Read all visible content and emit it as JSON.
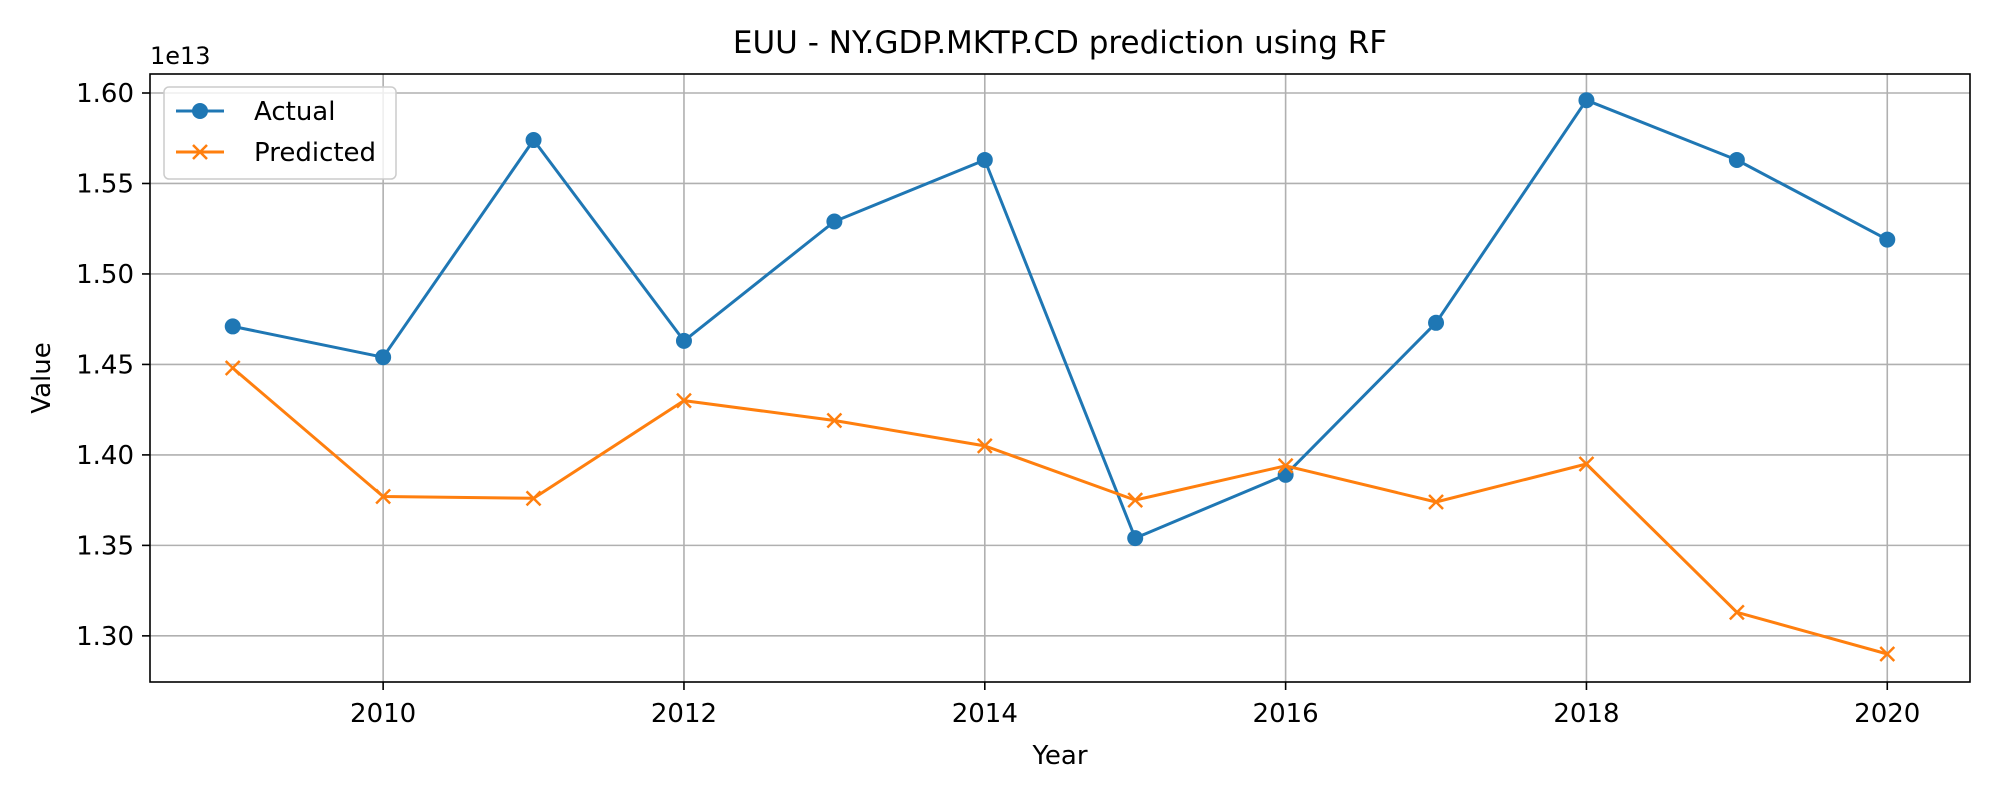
{
  "chart_data": {
    "type": "line",
    "title": "EUU - NY.GDP.MKTP.CD prediction using RF",
    "xlabel": "Year",
    "ylabel": "Value",
    "y_offset_label": "1e13",
    "x": [
      2009,
      2010,
      2011,
      2012,
      2013,
      2014,
      2015,
      2016,
      2017,
      2018,
      2019,
      2020
    ],
    "xlim": [
      2008.45,
      2020.55
    ],
    "ylim": [
      1.2745,
      1.6105
    ],
    "x_ticks": [
      2010,
      2012,
      2014,
      2016,
      2018,
      2020
    ],
    "x_tick_labels": [
      "2010",
      "2012",
      "2014",
      "2016",
      "2018",
      "2020"
    ],
    "y_ticks": [
      1.3,
      1.35,
      1.4,
      1.45,
      1.5,
      1.55,
      1.6
    ],
    "y_tick_labels": [
      "1.30",
      "1.35",
      "1.40",
      "1.45",
      "1.50",
      "1.55",
      "1.60"
    ],
    "grid": true,
    "legend_position": "top-left",
    "series": [
      {
        "name": "Actual",
        "color": "#1f77b4",
        "marker": "circle",
        "values": [
          1.471,
          1.454,
          1.574,
          1.463,
          1.529,
          1.563,
          1.354,
          1.389,
          1.473,
          1.596,
          1.563,
          1.519
        ]
      },
      {
        "name": "Predicted",
        "color": "#ff7f0e",
        "marker": "x",
        "values": [
          1.448,
          1.377,
          1.376,
          1.43,
          1.419,
          1.405,
          1.375,
          1.394,
          1.374,
          1.395,
          1.313,
          1.29
        ]
      }
    ]
  }
}
